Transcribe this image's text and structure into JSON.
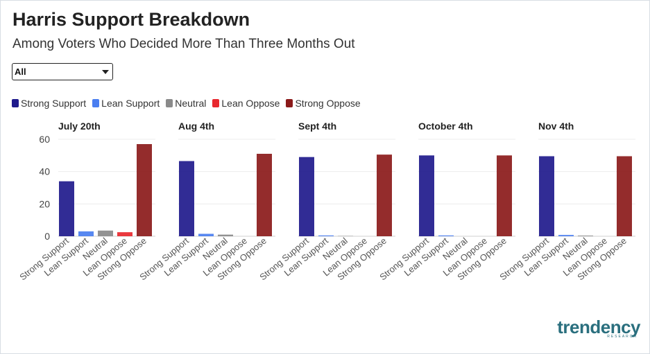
{
  "header": {
    "title": "Harris Support Breakdown",
    "subtitle": "Among Voters Who Decided More Than Three Months Out"
  },
  "filter": {
    "selected": "All"
  },
  "legend": [
    {
      "label": "Strong Support",
      "color": "#1f1a8c"
    },
    {
      "label": "Lean Support",
      "color": "#4a7ef0"
    },
    {
      "label": "Neutral",
      "color": "#8a8a8a"
    },
    {
      "label": "Lean Oppose",
      "color": "#e8282e"
    },
    {
      "label": "Strong Oppose",
      "color": "#8b1a1a"
    }
  ],
  "chart_data": {
    "type": "bar",
    "categories": [
      "Strong Support",
      "Lean Support",
      "Neutral",
      "Lean Oppose",
      "Strong Oppose"
    ],
    "colors": [
      "#1f1a8c",
      "#4a7ef0",
      "#8a8a8a",
      "#e8282e",
      "#8b1a1a"
    ],
    "ylim": [
      0,
      60
    ],
    "yticks": [
      0,
      20,
      40,
      60
    ],
    "grid": true,
    "legend_position": "top",
    "panels": [
      {
        "title": "July 20th",
        "values": [
          34,
          3,
          3.5,
          2.5,
          57
        ]
      },
      {
        "title": "Aug 4th",
        "values": [
          46.5,
          1.5,
          1,
          0,
          51
        ]
      },
      {
        "title": "Sept 4th",
        "values": [
          49,
          0.5,
          0.2,
          0,
          50.5
        ]
      },
      {
        "title": "October 4th",
        "values": [
          50,
          0.5,
          0,
          0,
          50
        ]
      },
      {
        "title": "Nov 4th",
        "values": [
          49.5,
          0.8,
          0.4,
          0,
          49.5
        ]
      }
    ]
  },
  "branding": {
    "logo_text": "trendency",
    "logo_subtext": "RESEARCH"
  }
}
